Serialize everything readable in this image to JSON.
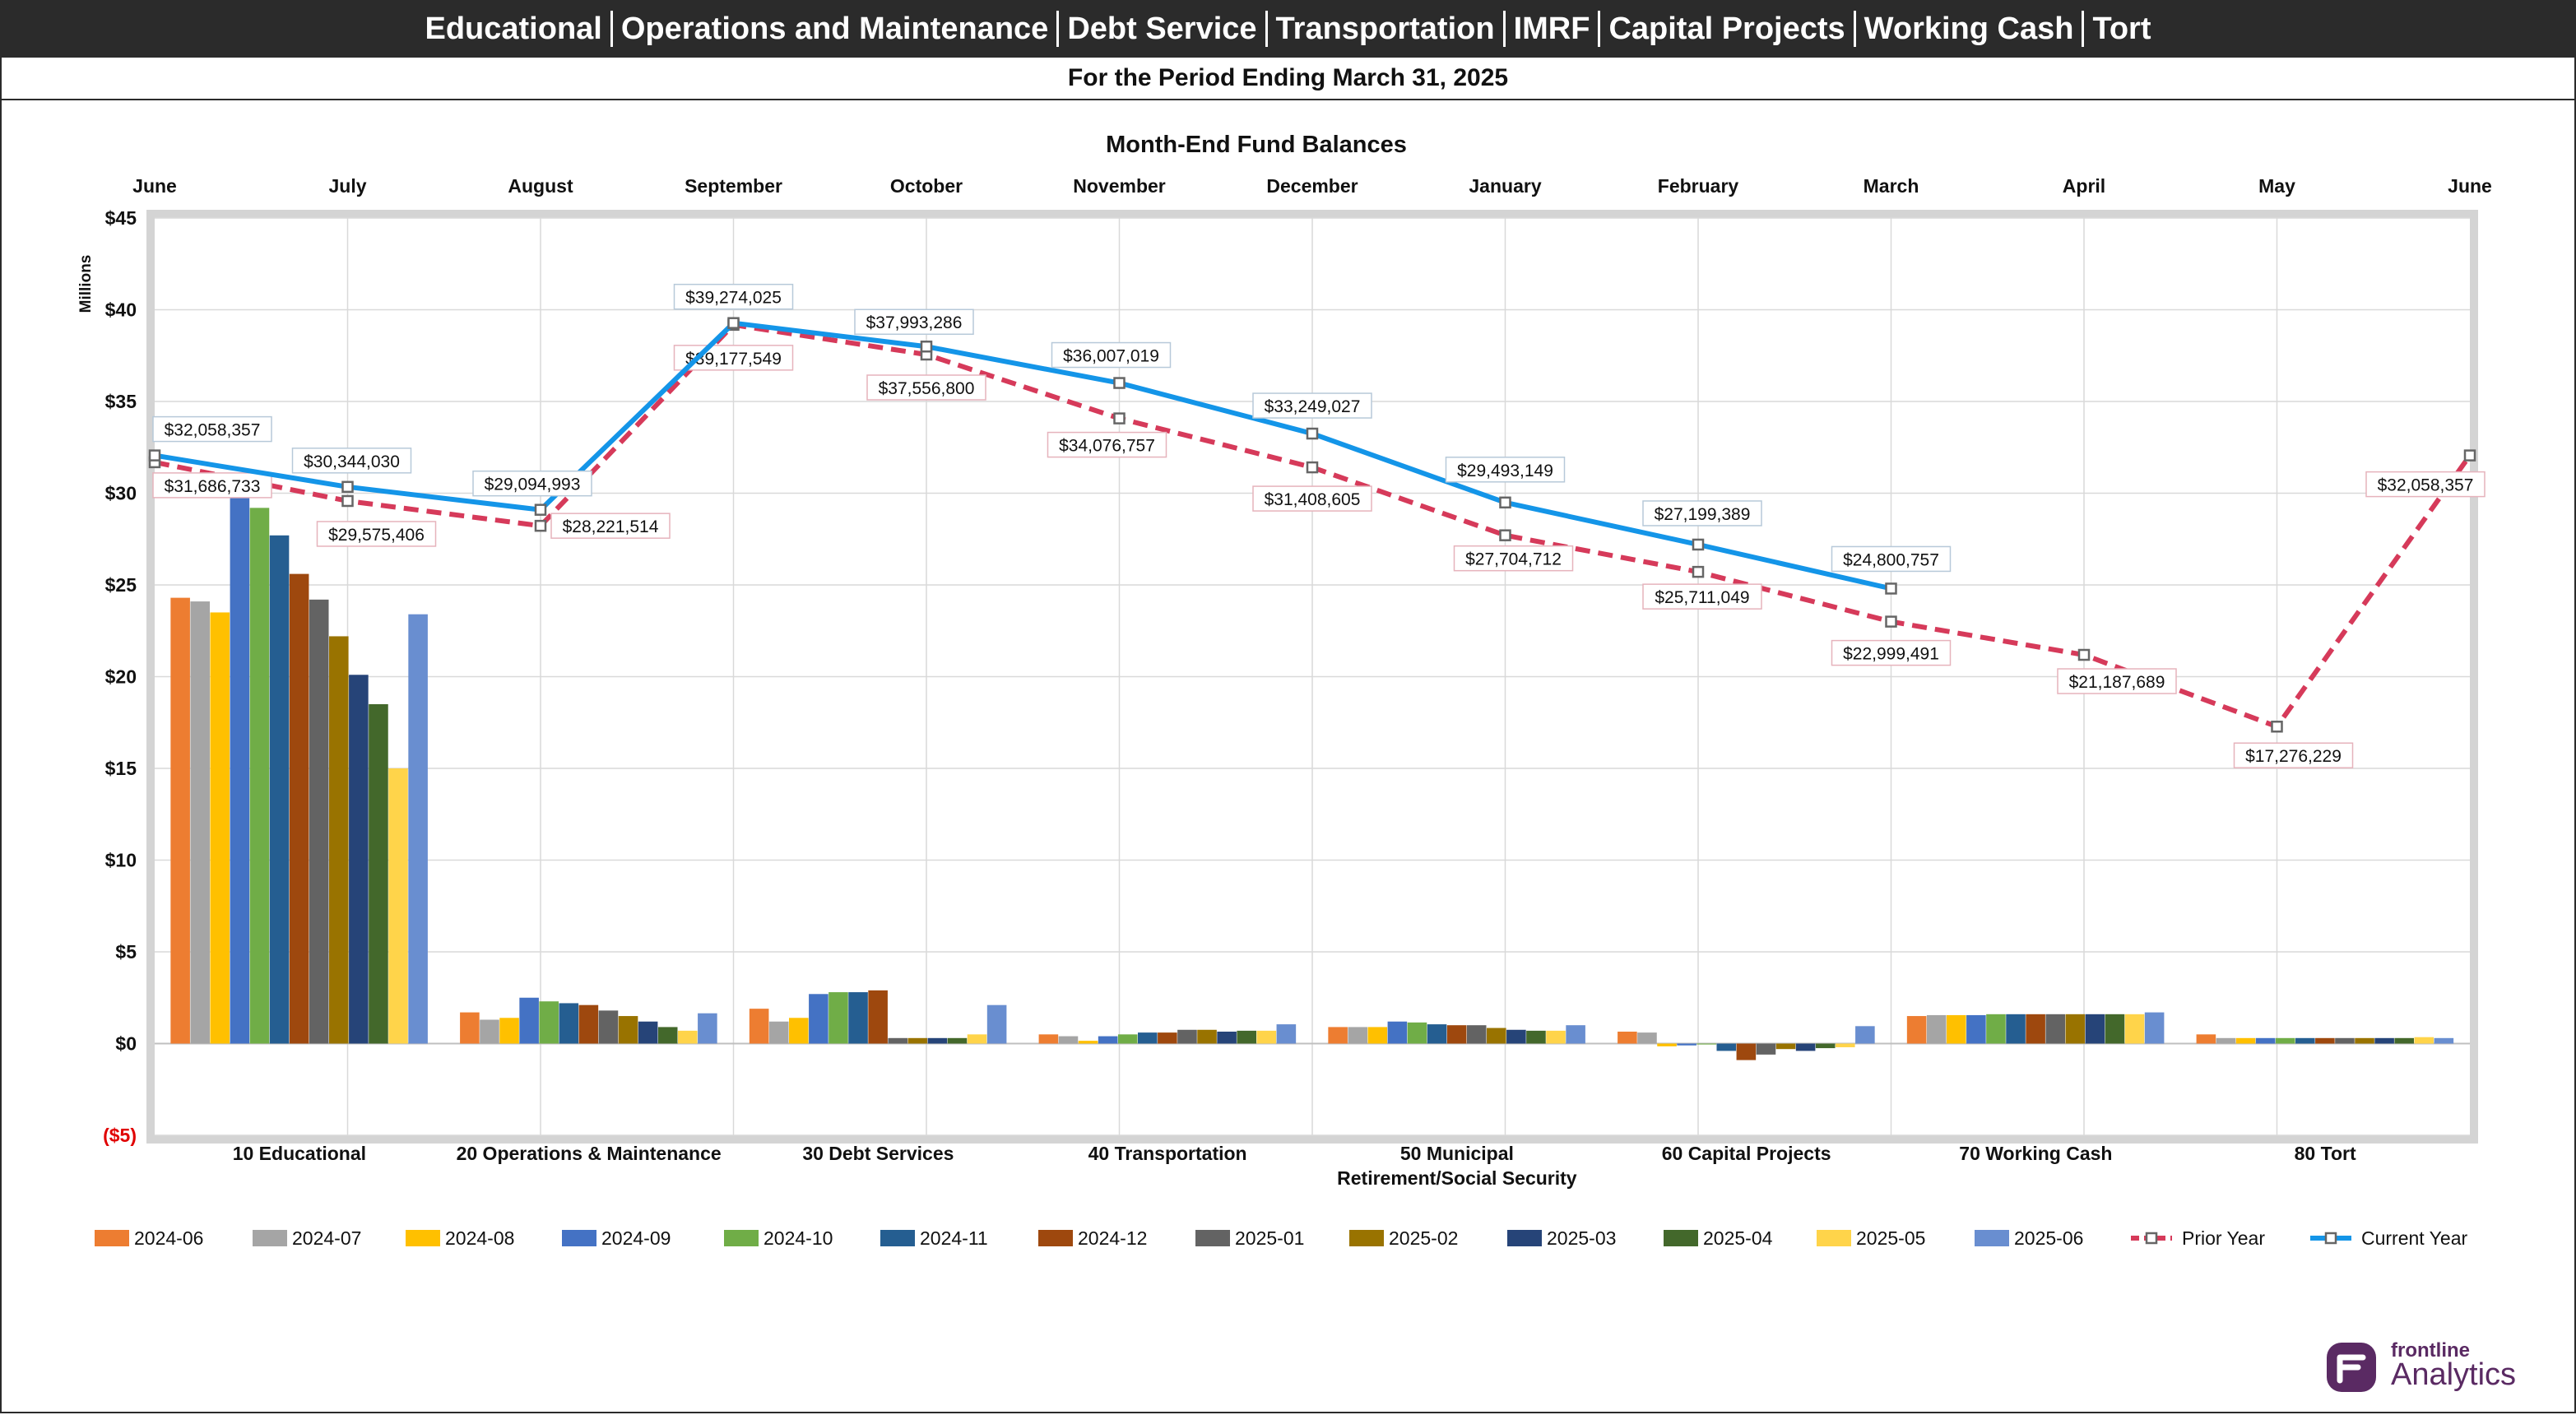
{
  "header": {
    "funds": [
      "Educational",
      "Operations and Maintenance",
      "Debt Service",
      "Transportation",
      "IMRF",
      "Capital Projects",
      "Working Cash",
      "Tort"
    ],
    "period": "For the Period Ending March 31, 2025"
  },
  "logo": {
    "line1": "frontline",
    "line2": "Analytics",
    "color": "#5a2a63"
  },
  "chart_data": {
    "type": "bar+line",
    "title": "Month-End Fund Balances",
    "ylabel": "Millions",
    "ylim": [
      -5,
      45
    ],
    "yticks": [
      -5,
      0,
      5,
      10,
      15,
      20,
      25,
      30,
      35,
      40,
      45
    ],
    "ytick_labels": [
      "($5)",
      "$0",
      "$5",
      "$10",
      "$15",
      "$20",
      "$25",
      "$30",
      "$35",
      "$40",
      "$45"
    ],
    "top_months": [
      "June",
      "July",
      "August",
      "September",
      "October",
      "November",
      "December",
      "January",
      "February",
      "March",
      "April",
      "May",
      "June"
    ],
    "categories": [
      [
        "10 Educational"
      ],
      [
        "20 Operations & Maintenance"
      ],
      [
        "30 Debt Services"
      ],
      [
        "40 Transportation"
      ],
      [
        "50 Municipal",
        "Retirement/Social Security"
      ],
      [
        "60 Capital Projects"
      ],
      [
        "70 Working Cash"
      ],
      [
        "80 Tort"
      ]
    ],
    "bar_series": [
      {
        "name": "2024-06",
        "color": "#ed7d31",
        "values": [
          24.3,
          1.7,
          1.9,
          0.5,
          0.9,
          0.65,
          1.5,
          0.5
        ]
      },
      {
        "name": "2024-07",
        "color": "#a5a5a5",
        "values": [
          24.1,
          1.3,
          1.2,
          0.4,
          0.9,
          0.6,
          1.55,
          0.3
        ]
      },
      {
        "name": "2024-08",
        "color": "#ffc000",
        "values": [
          23.5,
          1.4,
          1.4,
          0.15,
          0.9,
          -0.15,
          1.55,
          0.3
        ]
      },
      {
        "name": "2024-09",
        "color": "#4472c4",
        "values": [
          29.8,
          2.5,
          2.7,
          0.4,
          1.2,
          -0.1,
          1.55,
          0.3
        ]
      },
      {
        "name": "2024-10",
        "color": "#70ad47",
        "values": [
          29.2,
          2.3,
          2.8,
          0.5,
          1.15,
          -0.05,
          1.6,
          0.3
        ]
      },
      {
        "name": "2024-11",
        "color": "#255e91",
        "values": [
          27.7,
          2.2,
          2.8,
          0.6,
          1.05,
          -0.4,
          1.6,
          0.3
        ]
      },
      {
        "name": "2024-12",
        "color": "#9e480e",
        "values": [
          25.6,
          2.1,
          2.9,
          0.6,
          1.0,
          -0.9,
          1.6,
          0.3
        ]
      },
      {
        "name": "2025-01",
        "color": "#636363",
        "values": [
          24.2,
          1.8,
          0.3,
          0.75,
          1.0,
          -0.6,
          1.6,
          0.3
        ]
      },
      {
        "name": "2025-02",
        "color": "#997300",
        "values": [
          22.2,
          1.5,
          0.3,
          0.75,
          0.85,
          -0.3,
          1.6,
          0.3
        ]
      },
      {
        "name": "2025-03",
        "color": "#264478",
        "values": [
          20.1,
          1.2,
          0.3,
          0.65,
          0.75,
          -0.4,
          1.6,
          0.3
        ]
      },
      {
        "name": "2025-04",
        "color": "#43682b",
        "values": [
          18.5,
          0.9,
          0.3,
          0.7,
          0.7,
          -0.25,
          1.6,
          0.3
        ]
      },
      {
        "name": "2025-05",
        "color": "#ffd44a",
        "values": [
          15.0,
          0.7,
          0.5,
          0.7,
          0.7,
          -0.2,
          1.6,
          0.35
        ]
      },
      {
        "name": "2025-06",
        "color": "#698ed0",
        "values": [
          23.4,
          1.65,
          2.1,
          1.05,
          1.0,
          0.95,
          1.7,
          0.3
        ]
      }
    ],
    "line_series": [
      {
        "name": "Prior Year",
        "color": "#d63a5a",
        "dashed": true,
        "values": [
          31686733,
          29575406,
          28221514,
          39177549,
          37556800,
          34076757,
          31408605,
          27704712,
          25711049,
          22999491,
          21187689,
          17276229,
          32058357
        ],
        "labels": [
          "$31,686,733",
          "$29,575,406",
          "$28,221,514",
          "$39,177,549",
          "$37,556,800",
          "$34,076,757",
          "$31,408,605",
          "$27,704,712",
          "$25,711,049",
          "$22,999,491",
          "$21,187,689",
          "$17,276,229",
          "$32,058,357"
        ]
      },
      {
        "name": "Current Year",
        "color": "#1495e8",
        "dashed": false,
        "values": [
          32058357,
          30344030,
          29094993,
          39274025,
          37993286,
          36007019,
          33249027,
          29493149,
          27199389,
          24800757
        ],
        "labels": [
          "$32,058,357",
          "$30,344,030",
          "$29,094,993",
          "$39,274,025",
          "$37,993,286",
          "$36,007,019",
          "$33,249,027",
          "$29,493,149",
          "$27,199,389",
          "$24,800,757"
        ]
      }
    ]
  }
}
